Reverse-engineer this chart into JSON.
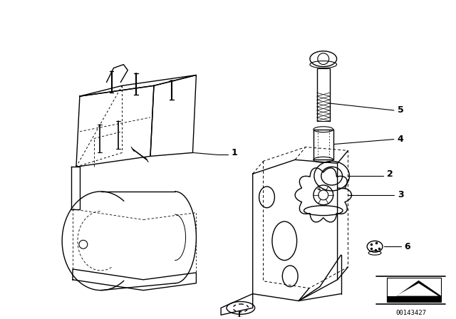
{
  "background_color": "#ffffff",
  "line_color": "#000000",
  "figure_width": 6.4,
  "figure_height": 4.48,
  "dpi": 100,
  "diagram_id": "00143427"
}
